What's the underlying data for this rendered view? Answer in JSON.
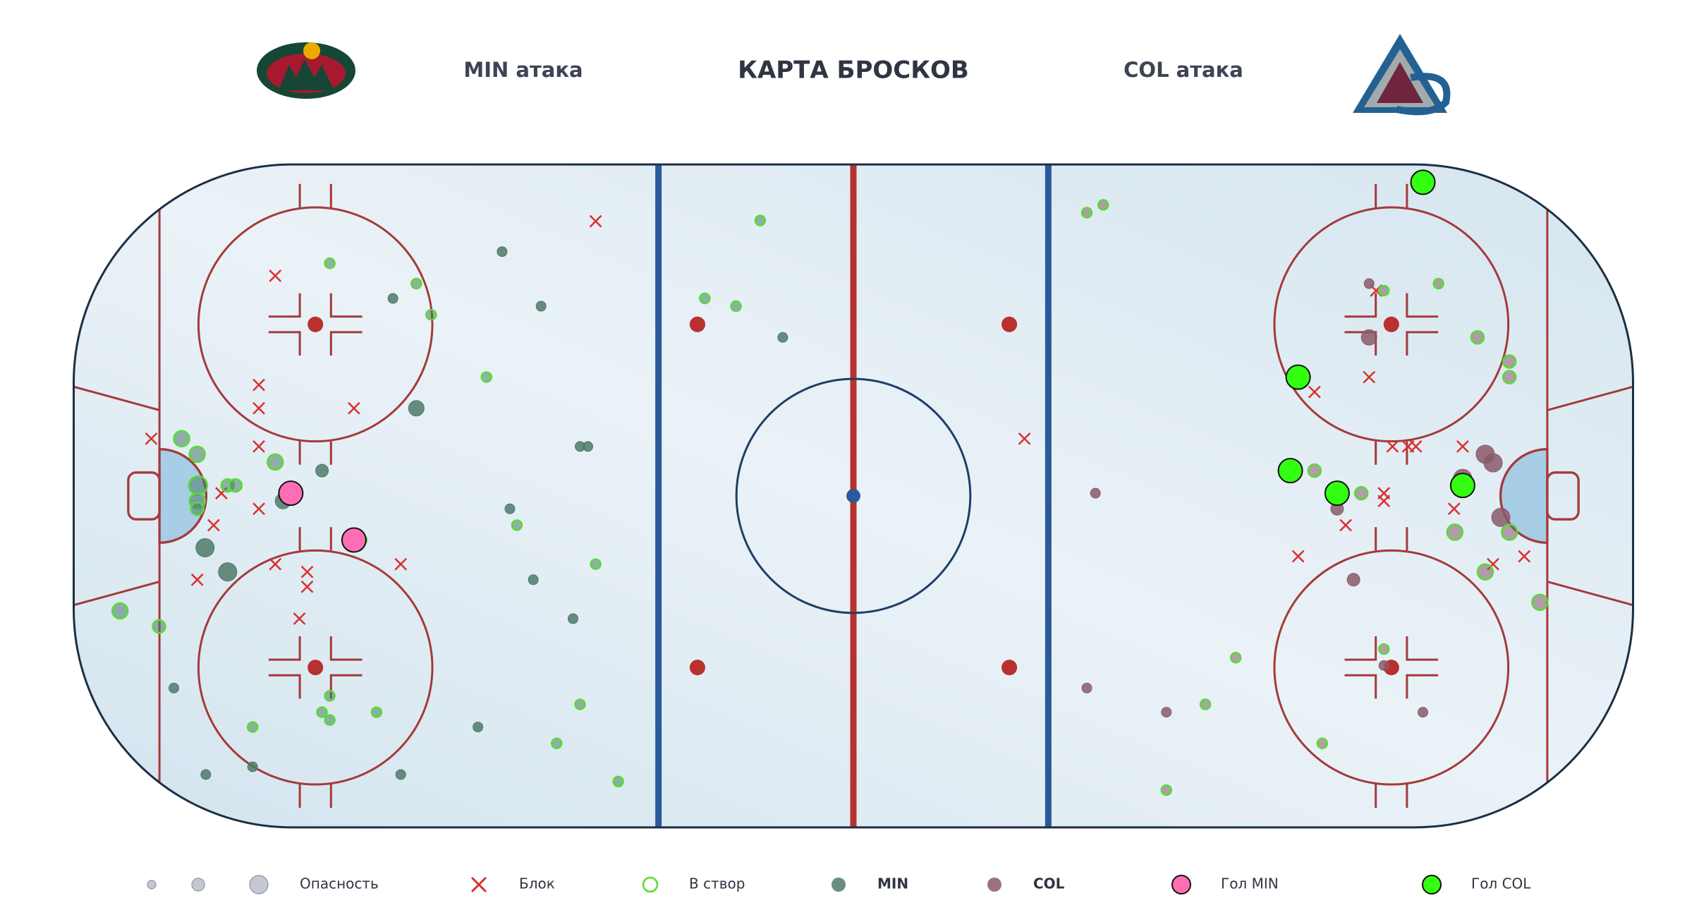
{
  "chart_data": {
    "type": "scatter",
    "title": "КАРТА БРОСКОВ",
    "left_label": "MIN атака",
    "right_label": "COL атака",
    "size_label": "Опасность",
    "on_target_label": "В створ",
    "on_target_color": "#55dd33",
    "xlim": [
      -100,
      100
    ],
    "ylim": [
      -42.5,
      42.5
    ],
    "series": [
      {
        "name": "Блок",
        "marker": "x",
        "color": "#d93030",
        "x": [
          -33.1,
          -74.2,
          -76.3,
          -76.3,
          -64.1,
          -90.1,
          -76.3,
          -81.1,
          -76.3,
          -82.1,
          -74.2,
          -70.1,
          -70.1,
          -58.1,
          -84.2,
          -71.1,
          21.9,
          59.1,
          66.1,
          67.0,
          69.1,
          71.1,
          72.1,
          78.1,
          68.0,
          68.0,
          63.1,
          77.0,
          57.0,
          82.0,
          86.0
        ],
        "y": [
          35.2,
          28.2,
          14.2,
          11.2,
          11.2,
          7.3,
          6.3,
          0.3,
          -1.7,
          -3.8,
          -8.8,
          -9.8,
          -11.7,
          -8.8,
          -10.8,
          -15.8,
          7.3,
          13.3,
          15.2,
          26.3,
          6.3,
          6.3,
          6.3,
          6.3,
          0.3,
          -0.7,
          -3.8,
          -1.7,
          -7.8,
          -8.8,
          -7.8
        ]
      },
      {
        "name": "MIN",
        "marker": "circle",
        "color": "#4d7a6a",
        "x": [
          -45.1,
          -59.1,
          -40.1,
          -56.1,
          -68.2,
          -73.2,
          -83.2,
          -80.3,
          -44.1,
          -41.1,
          -36.0,
          -87.2,
          -83.1,
          -77.1,
          -58.1,
          -48.2,
          -35.1,
          -34.1,
          -9.1,
          -74.2,
          -84.1,
          -67.2,
          -56.1,
          -54.2,
          -47.1,
          -86.2,
          -84.2,
          -84.2,
          -84.2,
          -80.3,
          -79.3,
          -43.2,
          -33.1,
          -94.1,
          -89.1,
          -67.2,
          -68.2,
          -67.2,
          -77.1,
          -61.2,
          -35.1,
          -38.1,
          -30.2,
          -12.0,
          -19.1,
          -15.1,
          -63.1
        ],
        "y": [
          31.3,
          25.3,
          24.3,
          11.2,
          3.2,
          -0.7,
          -6.7,
          -9.8,
          -1.7,
          -10.8,
          -15.8,
          -24.7,
          -35.8,
          -34.8,
          -35.8,
          -29.7,
          6.3,
          6.3,
          20.3,
          4.3,
          1.3,
          29.8,
          27.2,
          23.2,
          15.2,
          7.3,
          5.3,
          -0.7,
          -1.7,
          1.3,
          1.3,
          -3.8,
          -8.8,
          -14.8,
          -16.8,
          -25.7,
          -27.8,
          -28.8,
          -29.7,
          -27.8,
          -26.8,
          -31.8,
          -36.7,
          35.3,
          25.3,
          24.3,
          -5.7
        ],
        "danger": [
          0.1,
          0.1,
          0.1,
          0.3,
          0.2,
          0.3,
          0.4,
          0.4,
          0.1,
          0.1,
          0.1,
          0.1,
          0.1,
          0.1,
          0.1,
          0.1,
          0.1,
          0.1,
          0.1,
          0.3,
          0.4,
          0.1,
          0.1,
          0.1,
          0.1,
          0.3,
          0.3,
          0.3,
          0.2,
          0.2,
          0.2,
          0.1,
          0.1,
          0.3,
          0.2,
          0.1,
          0.1,
          0.1,
          0.1,
          0.1,
          0.1,
          0.1,
          0.1,
          0.1,
          0.1,
          0.1,
          0.1
        ],
        "on_target": [
          false,
          false,
          false,
          false,
          false,
          false,
          false,
          false,
          false,
          false,
          false,
          false,
          false,
          false,
          false,
          false,
          false,
          false,
          false,
          true,
          true,
          true,
          true,
          true,
          true,
          true,
          true,
          true,
          true,
          true,
          true,
          true,
          true,
          true,
          true,
          true,
          true,
          true,
          true,
          true,
          true,
          true,
          true,
          true,
          true,
          true,
          true
        ]
      },
      {
        "name": "COL",
        "marker": "circle",
        "color": "#8a5a6a",
        "x": [
          66.1,
          66.1,
          31.0,
          81.0,
          82.0,
          78.1,
          62.0,
          83.0,
          64.1,
          29.9,
          40.1,
          73.0,
          68.0,
          29.9,
          32.0,
          68.0,
          75.0,
          80.0,
          84.1,
          84.1,
          59.1,
          65.1,
          77.1,
          84.1,
          81.0,
          88.0,
          68.0,
          49.0,
          45.1,
          60.1,
          40.1
        ],
        "y": [
          27.2,
          20.3,
          0.3,
          5.3,
          4.2,
          2.2,
          -1.7,
          -2.8,
          -10.8,
          -24.7,
          -27.8,
          -27.8,
          -21.8,
          36.3,
          37.3,
          26.3,
          27.2,
          20.3,
          17.2,
          15.2,
          3.2,
          0.3,
          -4.7,
          -4.7,
          -9.8,
          -13.7,
          -19.7,
          -20.8,
          -26.8,
          -31.8,
          -37.8
        ],
        "danger": [
          0.1,
          0.3,
          0.1,
          0.4,
          0.4,
          0.4,
          0.2,
          0.4,
          0.2,
          0.1,
          0.1,
          0.1,
          0.1,
          0.1,
          0.1,
          0.1,
          0.1,
          0.2,
          0.2,
          0.2,
          0.2,
          0.2,
          0.3,
          0.3,
          0.3,
          0.3,
          0.1,
          0.1,
          0.1,
          0.1,
          0.1
        ],
        "on_target": [
          false,
          false,
          false,
          false,
          false,
          false,
          false,
          false,
          false,
          false,
          false,
          false,
          false,
          true,
          true,
          true,
          true,
          true,
          true,
          true,
          true,
          true,
          true,
          true,
          true,
          true,
          true,
          true,
          true,
          true,
          true
        ]
      },
      {
        "name": "Гол MIN",
        "marker": "goal",
        "color": "#ff6eb4",
        "x": [
          -72.2,
          -64.1
        ],
        "y": [
          0.3,
          -5.7
        ]
      },
      {
        "name": "Гол COL",
        "marker": "goal",
        "color": "#33ff11",
        "x": [
          73.0,
          57.0,
          56.0,
          62.0,
          78.1
        ],
        "y": [
          40.2,
          15.2,
          3.2,
          0.3,
          1.3
        ]
      }
    ]
  }
}
